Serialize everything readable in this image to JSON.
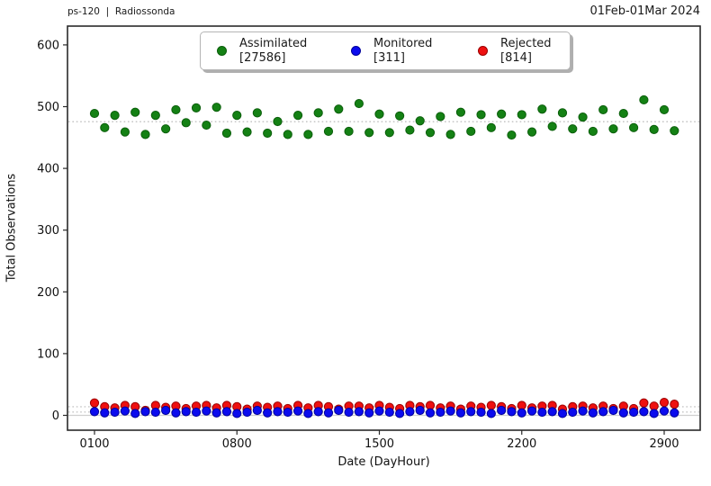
{
  "header": {
    "left_title": "ps-120  |  Radiossonda",
    "right_title": "01Feb-01Mar 2024"
  },
  "axes": {
    "ylabel": "Total Observations",
    "xlabel": "Date (DayHour)",
    "y_ticks": [
      0,
      100,
      200,
      300,
      400,
      500,
      600
    ],
    "x_ticks": {
      "labels": [
        "0100",
        "0800",
        "1500",
        "2200",
        "2900"
      ],
      "indices": [
        0,
        14,
        28,
        42,
        56
      ]
    }
  },
  "legend": {
    "items": [
      {
        "label": "Assimilated",
        "count": "[27586]",
        "color": "#148114",
        "edge": "#0b5e0b"
      },
      {
        "label": "Monitored",
        "count": "[311]",
        "color": "#0b0bee",
        "edge": "#00009a"
      },
      {
        "label": "Rejected",
        "count": "[814]",
        "color": "#ee1010",
        "edge": "#9a0000"
      }
    ]
  },
  "chart_data": {
    "type": "scatter",
    "title": "ps-120 | Radiossonda — 01Feb-01Mar 2024",
    "xlabel": "Date (DayHour)",
    "ylabel": "Total Observations",
    "ylim": [
      -24,
      630
    ],
    "grid": "horizontal dotted mean lines plus light solid zero line",
    "legend_position": "upper center",
    "x": [
      "0100",
      "0112",
      "0200",
      "0212",
      "0300",
      "0312",
      "0400",
      "0412",
      "0500",
      "0512",
      "0600",
      "0612",
      "0700",
      "0712",
      "0800",
      "0812",
      "0900",
      "0912",
      "1000",
      "1012",
      "1100",
      "1112",
      "1200",
      "1212",
      "1300",
      "1312",
      "1400",
      "1412",
      "1500",
      "1512",
      "1600",
      "1612",
      "1700",
      "1712",
      "1800",
      "1812",
      "1900",
      "1912",
      "2000",
      "2012",
      "2100",
      "2112",
      "2200",
      "2212",
      "2300",
      "2312",
      "2400",
      "2412",
      "2500",
      "2512",
      "2600",
      "2612",
      "2700",
      "2712",
      "2800",
      "2812",
      "2900",
      "2912"
    ],
    "series": [
      {
        "name": "Assimilated",
        "total": 27586,
        "color": "#148114",
        "edge": "#0b5e0b",
        "mean": 475.6,
        "values": [
          489,
          466,
          486,
          459,
          491,
          455,
          486,
          464,
          495,
          474,
          498,
          470,
          499,
          457,
          486,
          459,
          490,
          457,
          476,
          455,
          486,
          455,
          490,
          460,
          496,
          460,
          505,
          458,
          488,
          458,
          485,
          462,
          477,
          458,
          484,
          455,
          491,
          460,
          487,
          466,
          488,
          454,
          487,
          459,
          496,
          468,
          490,
          464,
          483,
          460,
          495,
          464,
          489,
          466,
          511,
          463,
          495,
          461
        ]
      },
      {
        "name": "Rejected",
        "total": 814,
        "color": "#ee1010",
        "edge": "#9a0000",
        "mean": 14.0,
        "values": [
          20,
          14,
          12,
          16,
          14,
          8,
          16,
          13,
          15,
          11,
          15,
          16,
          12,
          16,
          14,
          10,
          15,
          13,
          15,
          11,
          16,
          12,
          16,
          14,
          10,
          15,
          15,
          12,
          16,
          13,
          11,
          16,
          14,
          16,
          12,
          15,
          10,
          15,
          13,
          16,
          14,
          11,
          16,
          12,
          15,
          16,
          10,
          14,
          15,
          12,
          15,
          11,
          15,
          11,
          20,
          15,
          21,
          18
        ]
      },
      {
        "name": "Monitored",
        "total": 311,
        "color": "#0b0bee",
        "edge": "#00009a",
        "mean": 5.4,
        "values": [
          6,
          4,
          5,
          7,
          3,
          6,
          5,
          8,
          4,
          6,
          5,
          7,
          4,
          6,
          3,
          5,
          8,
          4,
          6,
          5,
          7,
          3,
          6,
          4,
          8,
          5,
          6,
          4,
          7,
          5,
          3,
          6,
          8,
          4,
          5,
          7,
          4,
          6,
          5,
          3,
          8,
          6,
          4,
          7,
          5,
          6,
          3,
          5,
          7,
          4,
          6,
          8,
          4,
          5,
          6,
          3,
          7,
          4
        ]
      }
    ],
    "mean_lines": [
      475.6,
      14.0,
      5.4
    ],
    "colors": {
      "dotted_line": "#c6c6c6",
      "zero_line": "#cfcfcf",
      "spine": "#2a2a2a"
    }
  }
}
